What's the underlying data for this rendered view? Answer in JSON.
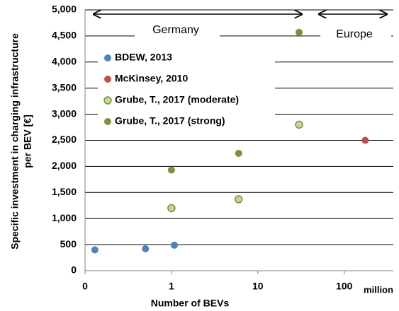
{
  "chart_data": {
    "type": "scatter",
    "xlabel": "Number of BEVs",
    "ylabel": [
      "Specific investment in charging infrastructure",
      "per BEV [€]"
    ],
    "xscale": "log",
    "xlim": [
      0.1,
      370
    ],
    "xticks": [
      {
        "value": 0.1,
        "label": "0"
      },
      1,
      10,
      100
    ],
    "ylim": [
      0,
      5000
    ],
    "yticks": [
      0,
      500,
      {
        "value": 1000,
        "label": "1,000"
      },
      {
        "value": 1500,
        "label": "1,500"
      },
      {
        "value": 2000,
        "label": "2,000"
      },
      {
        "value": 2500,
        "label": "2,500"
      },
      {
        "value": 3000,
        "label": "3,000"
      },
      {
        "value": 3500,
        "label": "3,500"
      },
      {
        "value": 4000,
        "label": "4,000"
      },
      {
        "value": 4500,
        "label": "4,500"
      },
      {
        "value": 5000,
        "label": "5,000"
      }
    ],
    "grid": true,
    "legend": "upper left",
    "annotations": [
      "Germany",
      "Europe",
      "million"
    ],
    "series": [
      {
        "name": "BDEW, 2013",
        "color": "#4f81bd",
        "x": [
          0.13,
          0.5,
          1.08
        ],
        "values": [
          400,
          420,
          490
        ]
      },
      {
        "name": "McKinsey, 2010",
        "color": "#c0504d",
        "x": [
          175
        ],
        "values": [
          2500
        ]
      },
      {
        "name": "Grube, T., 2017 (moderate)",
        "color": "#c3d69b",
        "edge": "#77933c",
        "x": [
          1,
          6,
          30
        ],
        "values": [
          1200,
          1370,
          2800
        ]
      },
      {
        "name": "Grube, T., 2017 (strong)",
        "color": "#77933c",
        "x": [
          1,
          6,
          30
        ],
        "values": [
          1930,
          2250,
          4570
        ]
      }
    ]
  }
}
